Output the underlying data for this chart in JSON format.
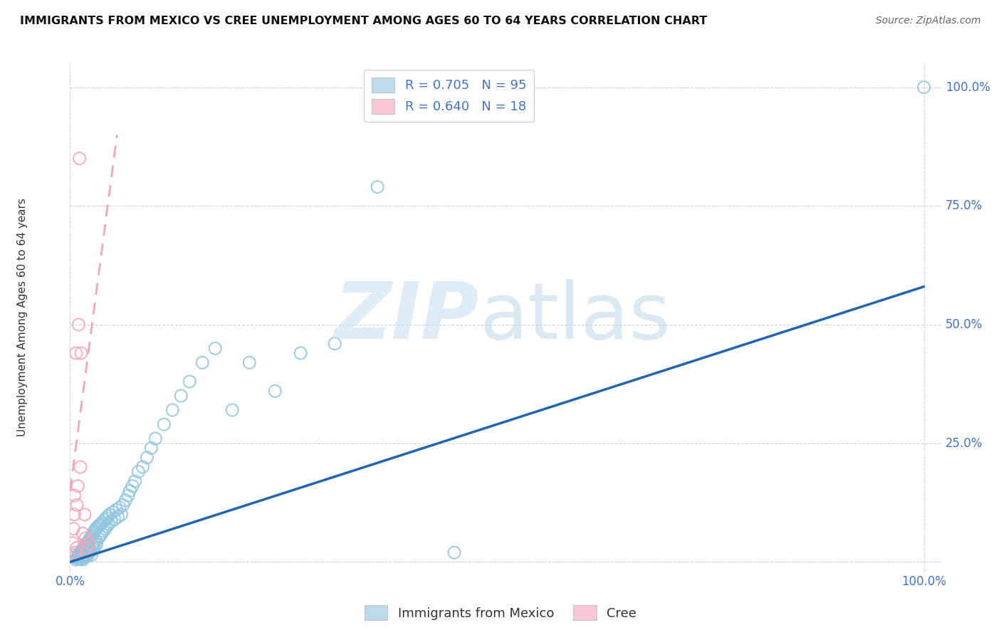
{
  "title": "IMMIGRANTS FROM MEXICO VS CREE UNEMPLOYMENT AMONG AGES 60 TO 64 YEARS CORRELATION CHART",
  "source": "Source: ZipAtlas.com",
  "ylabel": "Unemployment Among Ages 60 to 64 years",
  "blue_color": "#92c5de",
  "pink_color": "#f4a6b8",
  "blue_line_color": "#2166ac",
  "pink_line_color": "#f768a1",
  "blue_scatter_x": [
    0.005,
    0.007,
    0.008,
    0.009,
    0.01,
    0.01,
    0.011,
    0.011,
    0.012,
    0.012,
    0.013,
    0.013,
    0.014,
    0.014,
    0.015,
    0.015,
    0.015,
    0.016,
    0.016,
    0.017,
    0.017,
    0.018,
    0.018,
    0.019,
    0.019,
    0.02,
    0.02,
    0.021,
    0.021,
    0.022,
    0.022,
    0.023,
    0.023,
    0.024,
    0.024,
    0.025,
    0.025,
    0.026,
    0.026,
    0.027,
    0.027,
    0.028,
    0.028,
    0.029,
    0.029,
    0.03,
    0.03,
    0.031,
    0.032,
    0.033,
    0.034,
    0.035,
    0.036,
    0.037,
    0.038,
    0.039,
    0.04,
    0.041,
    0.042,
    0.043,
    0.044,
    0.045,
    0.046,
    0.048,
    0.05,
    0.052,
    0.054,
    0.056,
    0.058,
    0.06,
    0.062,
    0.065,
    0.068,
    0.07,
    0.073,
    0.076,
    0.08,
    0.085,
    0.09,
    0.095,
    0.1,
    0.11,
    0.12,
    0.13,
    0.14,
    0.155,
    0.17,
    0.19,
    0.21,
    0.24,
    0.27,
    0.31,
    0.36,
    0.45,
    1.0
  ],
  "blue_scatter_y": [
    0.01,
    0.005,
    0.008,
    0.012,
    0.007,
    0.015,
    0.009,
    0.018,
    0.006,
    0.02,
    0.011,
    0.022,
    0.008,
    0.025,
    0.013,
    0.005,
    0.028,
    0.017,
    0.03,
    0.01,
    0.032,
    0.015,
    0.035,
    0.02,
    0.038,
    0.012,
    0.04,
    0.025,
    0.042,
    0.018,
    0.045,
    0.03,
    0.048,
    0.022,
    0.05,
    0.015,
    0.053,
    0.035,
    0.056,
    0.028,
    0.06,
    0.04,
    0.063,
    0.032,
    0.066,
    0.045,
    0.07,
    0.038,
    0.073,
    0.05,
    0.077,
    0.055,
    0.08,
    0.06,
    0.084,
    0.065,
    0.088,
    0.07,
    0.092,
    0.075,
    0.096,
    0.08,
    0.1,
    0.085,
    0.105,
    0.09,
    0.11,
    0.095,
    0.115,
    0.1,
    0.12,
    0.13,
    0.14,
    0.15,
    0.16,
    0.17,
    0.19,
    0.2,
    0.22,
    0.24,
    0.26,
    0.29,
    0.32,
    0.35,
    0.38,
    0.42,
    0.45,
    0.32,
    0.42,
    0.36,
    0.44,
    0.46,
    0.79,
    0.02,
    1.0
  ],
  "pink_scatter_x": [
    0.003,
    0.004,
    0.005,
    0.005,
    0.006,
    0.007,
    0.008,
    0.008,
    0.009,
    0.01,
    0.011,
    0.012,
    0.013,
    0.015,
    0.017,
    0.018,
    0.02,
    0.022
  ],
  "pink_scatter_y": [
    0.04,
    0.07,
    0.1,
    0.14,
    0.02,
    0.44,
    0.03,
    0.12,
    0.16,
    0.5,
    0.85,
    0.2,
    0.44,
    0.06,
    0.1,
    0.05,
    0.03,
    0.04
  ],
  "blue_trend_x": [
    0.0,
    1.0
  ],
  "blue_trend_y": [
    0.0,
    0.58
  ],
  "pink_trend_x": [
    0.0,
    0.055
  ],
  "pink_trend_y": [
    0.15,
    0.9
  ],
  "xlim": [
    0.0,
    1.02
  ],
  "ylim": [
    -0.02,
    1.05
  ],
  "yticks": [
    0.0,
    0.25,
    0.5,
    0.75,
    1.0
  ],
  "ytick_labels": [
    "",
    "25.0%",
    "50.0%",
    "75.0%",
    "100.0%"
  ],
  "xtick_left_label": "0.0%",
  "xtick_right_label": "100.0%",
  "grid_color": "#d5d5d5",
  "legend_text_color": "#4472c4",
  "watermark_zip_color": "#cce0f0",
  "watermark_atlas_color": "#b8d4e8"
}
